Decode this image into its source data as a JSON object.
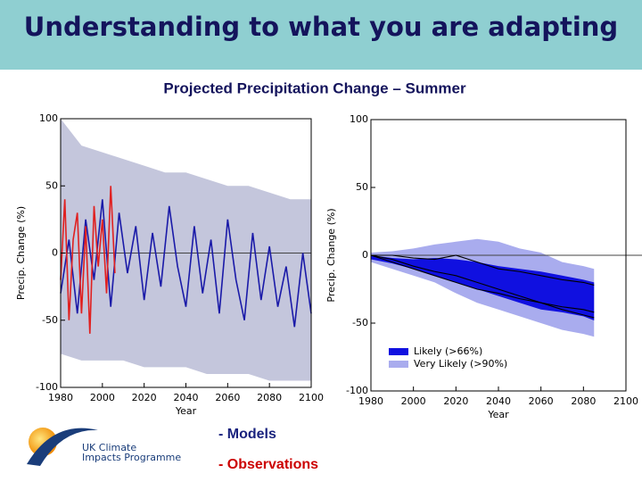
{
  "title": "Understanding to what you are adapting",
  "subtitle": "Projected Precipitation Change – Summer",
  "notes": [
    "- Models",
    "- Observations"
  ],
  "logo": [
    "UK Climate",
    "Impacts Programme"
  ],
  "chart_data": [
    {
      "type": "line",
      "xlabel": "Year",
      "ylabel": "Precip. Change (%)",
      "xlim": [
        1980,
        2100
      ],
      "xticks": [
        1980,
        2000,
        2020,
        2040,
        2060,
        2080,
        2100
      ],
      "ylim": [
        -100,
        100
      ],
      "yticks": [
        -100,
        -50,
        0,
        50,
        100
      ],
      "bands": [
        {
          "color": "#c4c6dc",
          "x": [
            1980,
            1990,
            2000,
            2010,
            2020,
            2030,
            2040,
            2050,
            2060,
            2070,
            2080,
            2090,
            2100
          ],
          "upper": [
            100,
            80,
            75,
            70,
            65,
            60,
            60,
            55,
            50,
            50,
            45,
            40,
            40
          ],
          "lower": [
            -75,
            -80,
            -80,
            -80,
            -85,
            -85,
            -85,
            -90,
            -90,
            -90,
            -95,
            -95,
            -95
          ]
        }
      ],
      "series": [
        {
          "color": "#1a1aa8",
          "x": [
            1980,
            1984,
            1988,
            1992,
            1996,
            2000,
            2004,
            2008,
            2012,
            2016,
            2020,
            2024,
            2028,
            2032,
            2036,
            2040,
            2044,
            2048,
            2052,
            2056,
            2060,
            2064,
            2068,
            2072,
            2076,
            2080,
            2084,
            2088,
            2092,
            2096,
            2100
          ],
          "values": [
            -30,
            10,
            -45,
            25,
            -20,
            40,
            -40,
            30,
            -15,
            20,
            -35,
            15,
            -25,
            35,
            -10,
            -40,
            20,
            -30,
            10,
            -45,
            25,
            -20,
            -50,
            15,
            -35,
            5,
            -40,
            -10,
            -55,
            0,
            -45
          ]
        },
        {
          "color": "#e02020",
          "x": [
            1980,
            1982,
            1984,
            1986,
            1988,
            1990,
            1992,
            1994,
            1996,
            1998,
            2000,
            2002,
            2004,
            2006
          ],
          "values": [
            -20,
            40,
            -50,
            10,
            30,
            -45,
            20,
            -60,
            35,
            -10,
            25,
            -30,
            50,
            -15
          ]
        }
      ]
    },
    {
      "type": "line",
      "xlabel": "Year",
      "ylabel": "Precip. Change (%)",
      "xlim": [
        1980,
        2100
      ],
      "xticks": [
        1980,
        2000,
        2020,
        2040,
        2060,
        2080,
        2100
      ],
      "ylim": [
        -100,
        100
      ],
      "yticks": [
        -100,
        -50,
        0,
        50,
        100
      ],
      "legend": "lower left",
      "bands": [
        {
          "name": "Very Likely (>90%)",
          "color": "#a9acee",
          "x": [
            1980,
            1990,
            2000,
            2010,
            2020,
            2030,
            2040,
            2050,
            2060,
            2070,
            2080,
            2085
          ],
          "upper": [
            2,
            3,
            5,
            8,
            10,
            12,
            10,
            5,
            2,
            -5,
            -8,
            -10
          ],
          "lower": [
            -5,
            -10,
            -15,
            -20,
            -28,
            -35,
            -40,
            -45,
            -50,
            -55,
            -58,
            -60
          ]
        },
        {
          "name": "Likely (>66%)",
          "color": "#1010e0",
          "x": [
            1980,
            1990,
            2000,
            2010,
            2020,
            2030,
            2040,
            2050,
            2060,
            2070,
            2080,
            2085
          ],
          "upper": [
            0,
            -2,
            -3,
            -2,
            -3,
            -5,
            -8,
            -10,
            -12,
            -15,
            -18,
            -20
          ],
          "lower": [
            -3,
            -6,
            -10,
            -15,
            -20,
            -25,
            -30,
            -35,
            -40,
            -42,
            -45,
            -48
          ]
        }
      ],
      "series": [
        {
          "color": "#000000",
          "x": [
            1980,
            1990,
            2000,
            2010,
            2020,
            2030,
            2040,
            2050,
            2060,
            2070,
            2080,
            2085
          ],
          "values": [
            0,
            -3,
            -8,
            -12,
            -15,
            -20,
            -25,
            -30,
            -35,
            -40,
            -44,
            -46
          ]
        },
        {
          "color": "#000000",
          "x": [
            1980,
            1990,
            2000,
            2010,
            2020,
            2030,
            2040,
            2050,
            2060,
            2070,
            2080,
            2085
          ],
          "values": [
            0,
            0,
            -2,
            -3,
            0,
            -5,
            -10,
            -12,
            -15,
            -18,
            -20,
            -22
          ]
        },
        {
          "color": "#000000",
          "x": [
            1980,
            1990,
            2000,
            2010,
            2020,
            2030,
            2040,
            2050,
            2060,
            2070,
            2080,
            2085
          ],
          "values": [
            0,
            -5,
            -10,
            -15,
            -20,
            -25,
            -28,
            -32,
            -35,
            -38,
            -40,
            -42
          ]
        }
      ]
    }
  ]
}
